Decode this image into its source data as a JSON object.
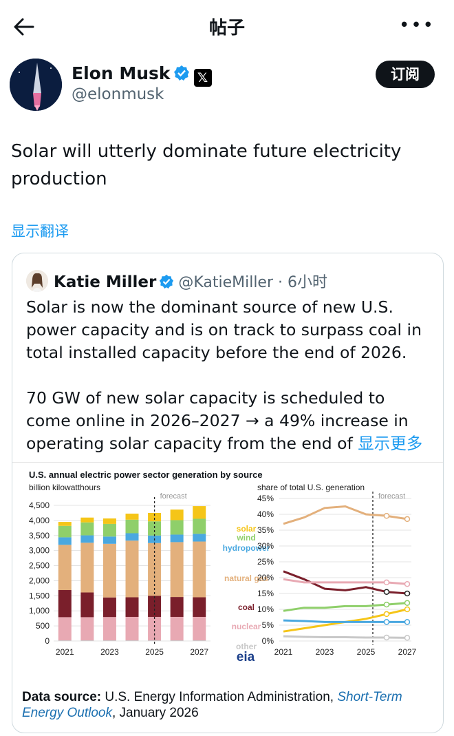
{
  "header": {
    "title": "帖子"
  },
  "post": {
    "author_name": "Elon Musk",
    "handle": "@elonmusk",
    "subscribe_label": "订阅",
    "text": "Solar will utterly dominate future electricity production",
    "translate_label": "显示翻译"
  },
  "quote": {
    "author_name": "Katie Miller",
    "handle_time": "@KatieMiller · 6小时",
    "paragraph1": "Solar is now the dominant source of new U.S. power capacity and is on track to surpass coal in total installed capacity before the end of 2026.",
    "paragraph2": "70 GW of new solar capacity is scheduled to come online in 2026–2027 → a 49% increase in operating solar capacity from the end of ",
    "show_more_label": "显示更多"
  },
  "colors": {
    "solar": "#f5c518",
    "wind": "#8fcf6a",
    "hydro": "#4aa8e0",
    "gas": "#e3b07c",
    "coal": "#7a1f2b",
    "nuclear": "#e8a9b3",
    "other": "#c8c8c8",
    "link": "#1d9bf0"
  },
  "chart_data": [
    {
      "type": "bar",
      "title": "U.S. annual electric power sector generation by source",
      "ylabel": "billion kilowatthours",
      "forecast_label": "forecast",
      "ylim": [
        0,
        4500
      ],
      "yticks": [
        "0",
        "500",
        "1,000",
        "1,500",
        "2,000",
        "2,500",
        "3,000",
        "3,500",
        "4,000",
        "4,500"
      ],
      "xtick_labels": [
        "2021",
        "2023",
        "2025",
        "2027"
      ],
      "categories": [
        "2021",
        "2022",
        "2023",
        "2024",
        "2025",
        "2026",
        "2027"
      ],
      "series": [
        {
          "name": "other",
          "values": [
            20,
            20,
            20,
            20,
            20,
            20,
            20
          ]
        },
        {
          "name": "nuclear",
          "values": [
            770,
            770,
            775,
            780,
            780,
            780,
            780
          ]
        },
        {
          "name": "coal",
          "values": [
            900,
            820,
            650,
            650,
            700,
            660,
            650
          ]
        },
        {
          "name": "natural gas",
          "values": [
            1500,
            1650,
            1780,
            1880,
            1750,
            1820,
            1850
          ]
        },
        {
          "name": "hydropower",
          "values": [
            250,
            245,
            240,
            245,
            250,
            250,
            255
          ]
        },
        {
          "name": "wind",
          "values": [
            380,
            430,
            420,
            450,
            470,
            480,
            500
          ]
        },
        {
          "name": "solar",
          "values": [
            130,
            160,
            180,
            200,
            280,
            350,
            420
          ]
        }
      ],
      "legend": [
        "solar",
        "wind",
        "hydropower",
        "natural gas",
        "coal",
        "nuclear",
        "other"
      ]
    },
    {
      "type": "line",
      "ylabel": "share of total U.S. generation",
      "forecast_label": "forecast",
      "ylim": [
        0,
        45
      ],
      "yticks": [
        "0%",
        "5%",
        "10%",
        "15%",
        "20%",
        "25%",
        "30%",
        "35%",
        "40%",
        "45%"
      ],
      "xtick_labels": [
        "2021",
        "2023",
        "2025",
        "2027"
      ],
      "x": [
        2021,
        2022,
        2023,
        2024,
        2025,
        2026,
        2027
      ],
      "series": [
        {
          "name": "natural gas",
          "values": [
            37,
            39,
            42,
            42.5,
            40,
            39.5,
            38.5
          ]
        },
        {
          "name": "coal",
          "values": [
            22,
            19.5,
            16.5,
            16,
            17,
            15.5,
            15
          ]
        },
        {
          "name": "nuclear",
          "values": [
            19.5,
            18.5,
            18.5,
            18.5,
            18.5,
            18.5,
            18
          ]
        },
        {
          "name": "wind",
          "values": [
            9.5,
            10.5,
            10.5,
            11,
            11,
            11.5,
            12
          ]
        },
        {
          "name": "solar",
          "values": [
            3,
            4,
            5,
            6,
            7,
            8.5,
            10
          ]
        },
        {
          "name": "hydropower",
          "values": [
            6.5,
            6.3,
            6,
            6,
            6,
            6,
            6
          ]
        },
        {
          "name": "other",
          "values": [
            1.5,
            1.3,
            1.2,
            1.2,
            1.1,
            1.1,
            1
          ]
        }
      ]
    }
  ],
  "source": {
    "label": "Data source:",
    "org": " U.S. Energy Information Administration, ",
    "report": "Short-Term Energy Outlook",
    "date": ", January 2026"
  },
  "eia_logo": "eia"
}
